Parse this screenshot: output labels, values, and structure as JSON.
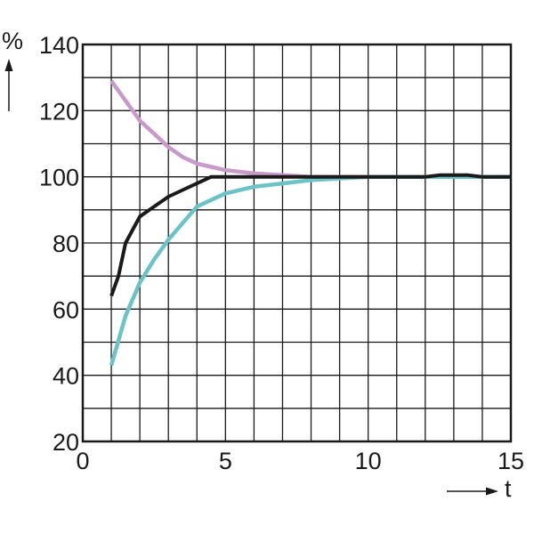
{
  "chart_data": {
    "type": "line",
    "xlabel": "t",
    "ylabel": "%",
    "xlim": [
      0,
      15
    ],
    "ylim": [
      20,
      140
    ],
    "x_ticks": [
      0,
      5,
      10,
      15
    ],
    "y_ticks": [
      20,
      40,
      60,
      80,
      100,
      120,
      140
    ],
    "grid": true,
    "series": [
      {
        "color": "#c89ac9",
        "x": [
          1,
          1.5,
          2,
          2.5,
          3,
          3.5,
          4,
          4.5,
          5,
          6,
          7,
          8,
          9,
          10,
          12,
          14,
          15
        ],
        "y": [
          129,
          123,
          117,
          113,
          109,
          106,
          104,
          103,
          102,
          101,
          100.5,
          100,
          100,
          100,
          100,
          100,
          100
        ]
      },
      {
        "color": "#6cc3c6",
        "x": [
          1,
          1.5,
          2,
          2.5,
          3,
          3.5,
          4,
          4.5,
          5,
          6,
          7,
          8,
          9,
          10,
          11,
          12,
          15
        ],
        "y": [
          43,
          58,
          68,
          75,
          81,
          86,
          91,
          93,
          95,
          97,
          98,
          99,
          99.5,
          100,
          100,
          100,
          100
        ]
      },
      {
        "color": "#1a1a1a",
        "x": [
          1,
          1.25,
          1.5,
          2,
          2.5,
          3,
          3.5,
          4,
          4.5,
          5,
          6,
          8,
          10,
          12,
          12.5,
          13,
          13.5,
          14,
          15
        ],
        "y": [
          64,
          70,
          80,
          88,
          91,
          94,
          96,
          98,
          100,
          100,
          100,
          100,
          100,
          100,
          100.5,
          100.5,
          100.5,
          100,
          100
        ]
      }
    ]
  }
}
